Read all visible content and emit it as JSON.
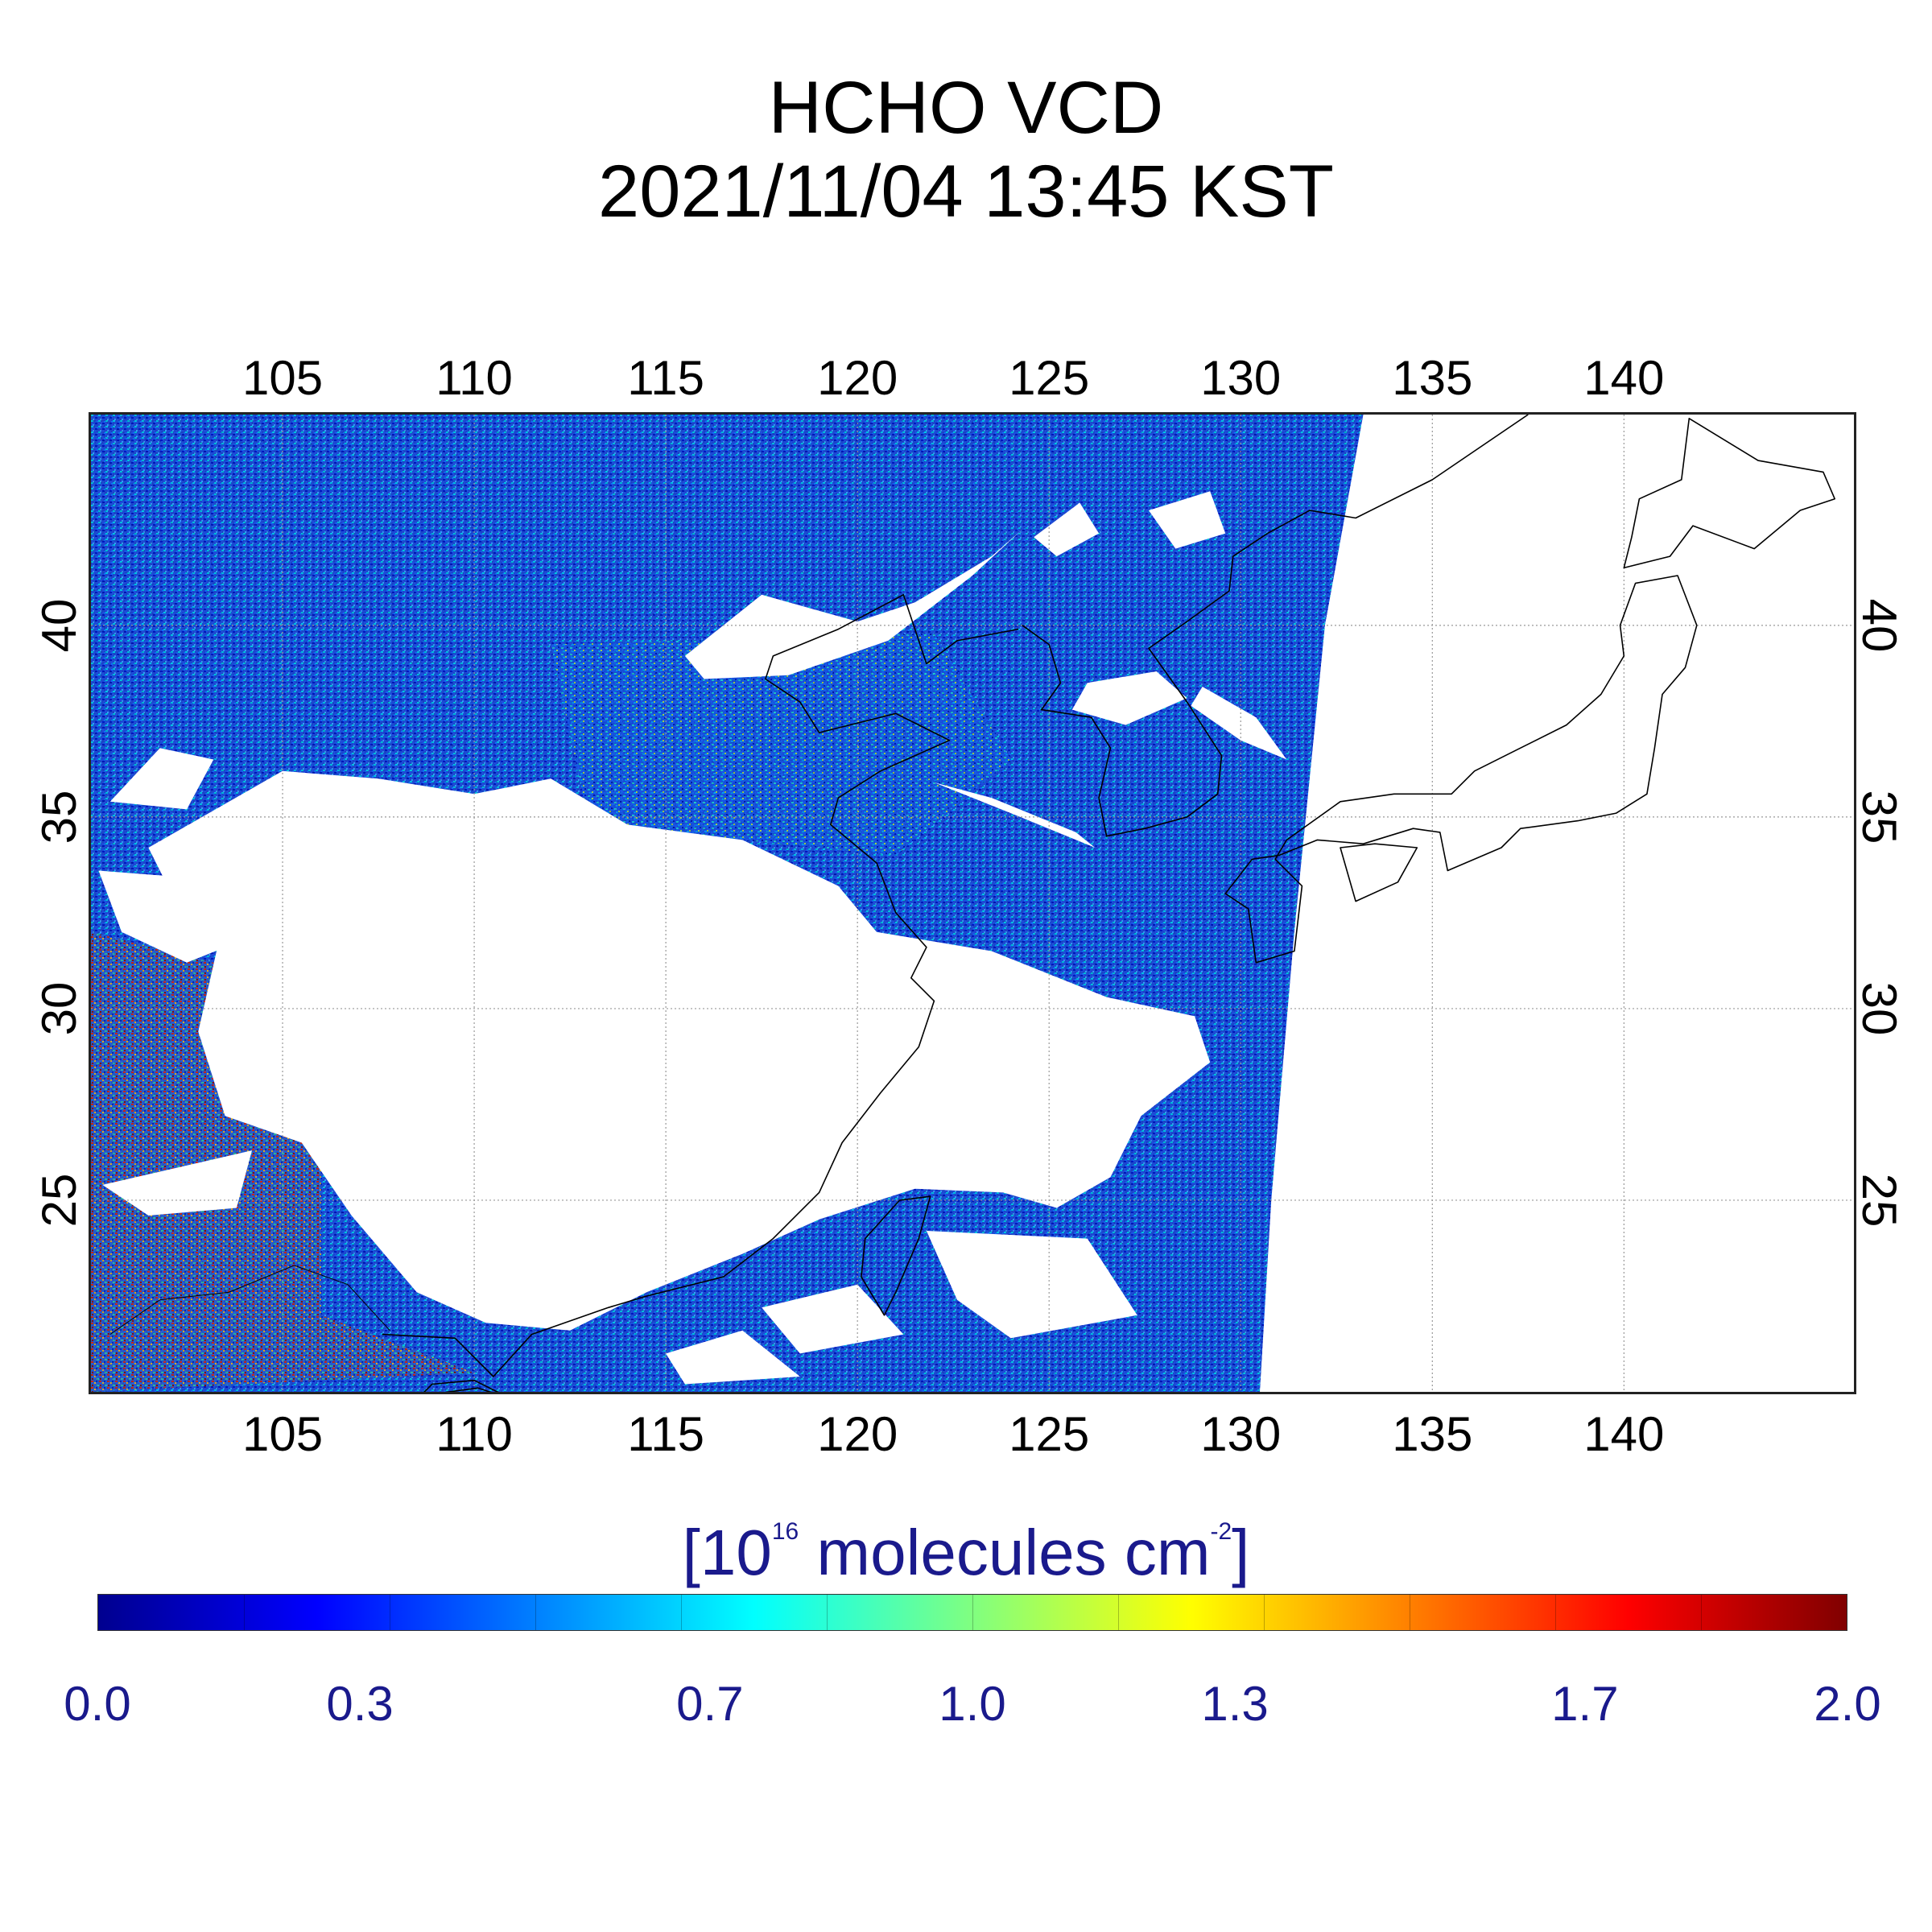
{
  "title": {
    "line1": "HCHO VCD",
    "line2": "2021/11/04 13:45 KST"
  },
  "map": {
    "lon_range": [
      100,
      146
    ],
    "lat_range": [
      20,
      45.5
    ],
    "lon_ticks": [
      "105",
      "110",
      "115",
      "120",
      "125",
      "130",
      "135",
      "140"
    ],
    "lat_ticks": [
      "40",
      "35",
      "30",
      "25"
    ],
    "grid": true
  },
  "colorbar": {
    "label_prefix": "[10",
    "label_exp": "16",
    "label_mid": " molecules cm",
    "label_exp2": "-2",
    "label_suffix": "]",
    "range": [
      0.0,
      2.0
    ],
    "ticks": [
      "0.0",
      "0.3",
      "0.7",
      "1.0",
      "1.3",
      "1.7",
      "2.0"
    ],
    "colormap": "jet"
  },
  "colors": {
    "text_accent": "#1a1a8c",
    "jet": [
      "#00008f",
      "#0000ff",
      "#0080ff",
      "#00ffff",
      "#80ff80",
      "#ffff00",
      "#ff8000",
      "#ff0000",
      "#800000"
    ]
  }
}
